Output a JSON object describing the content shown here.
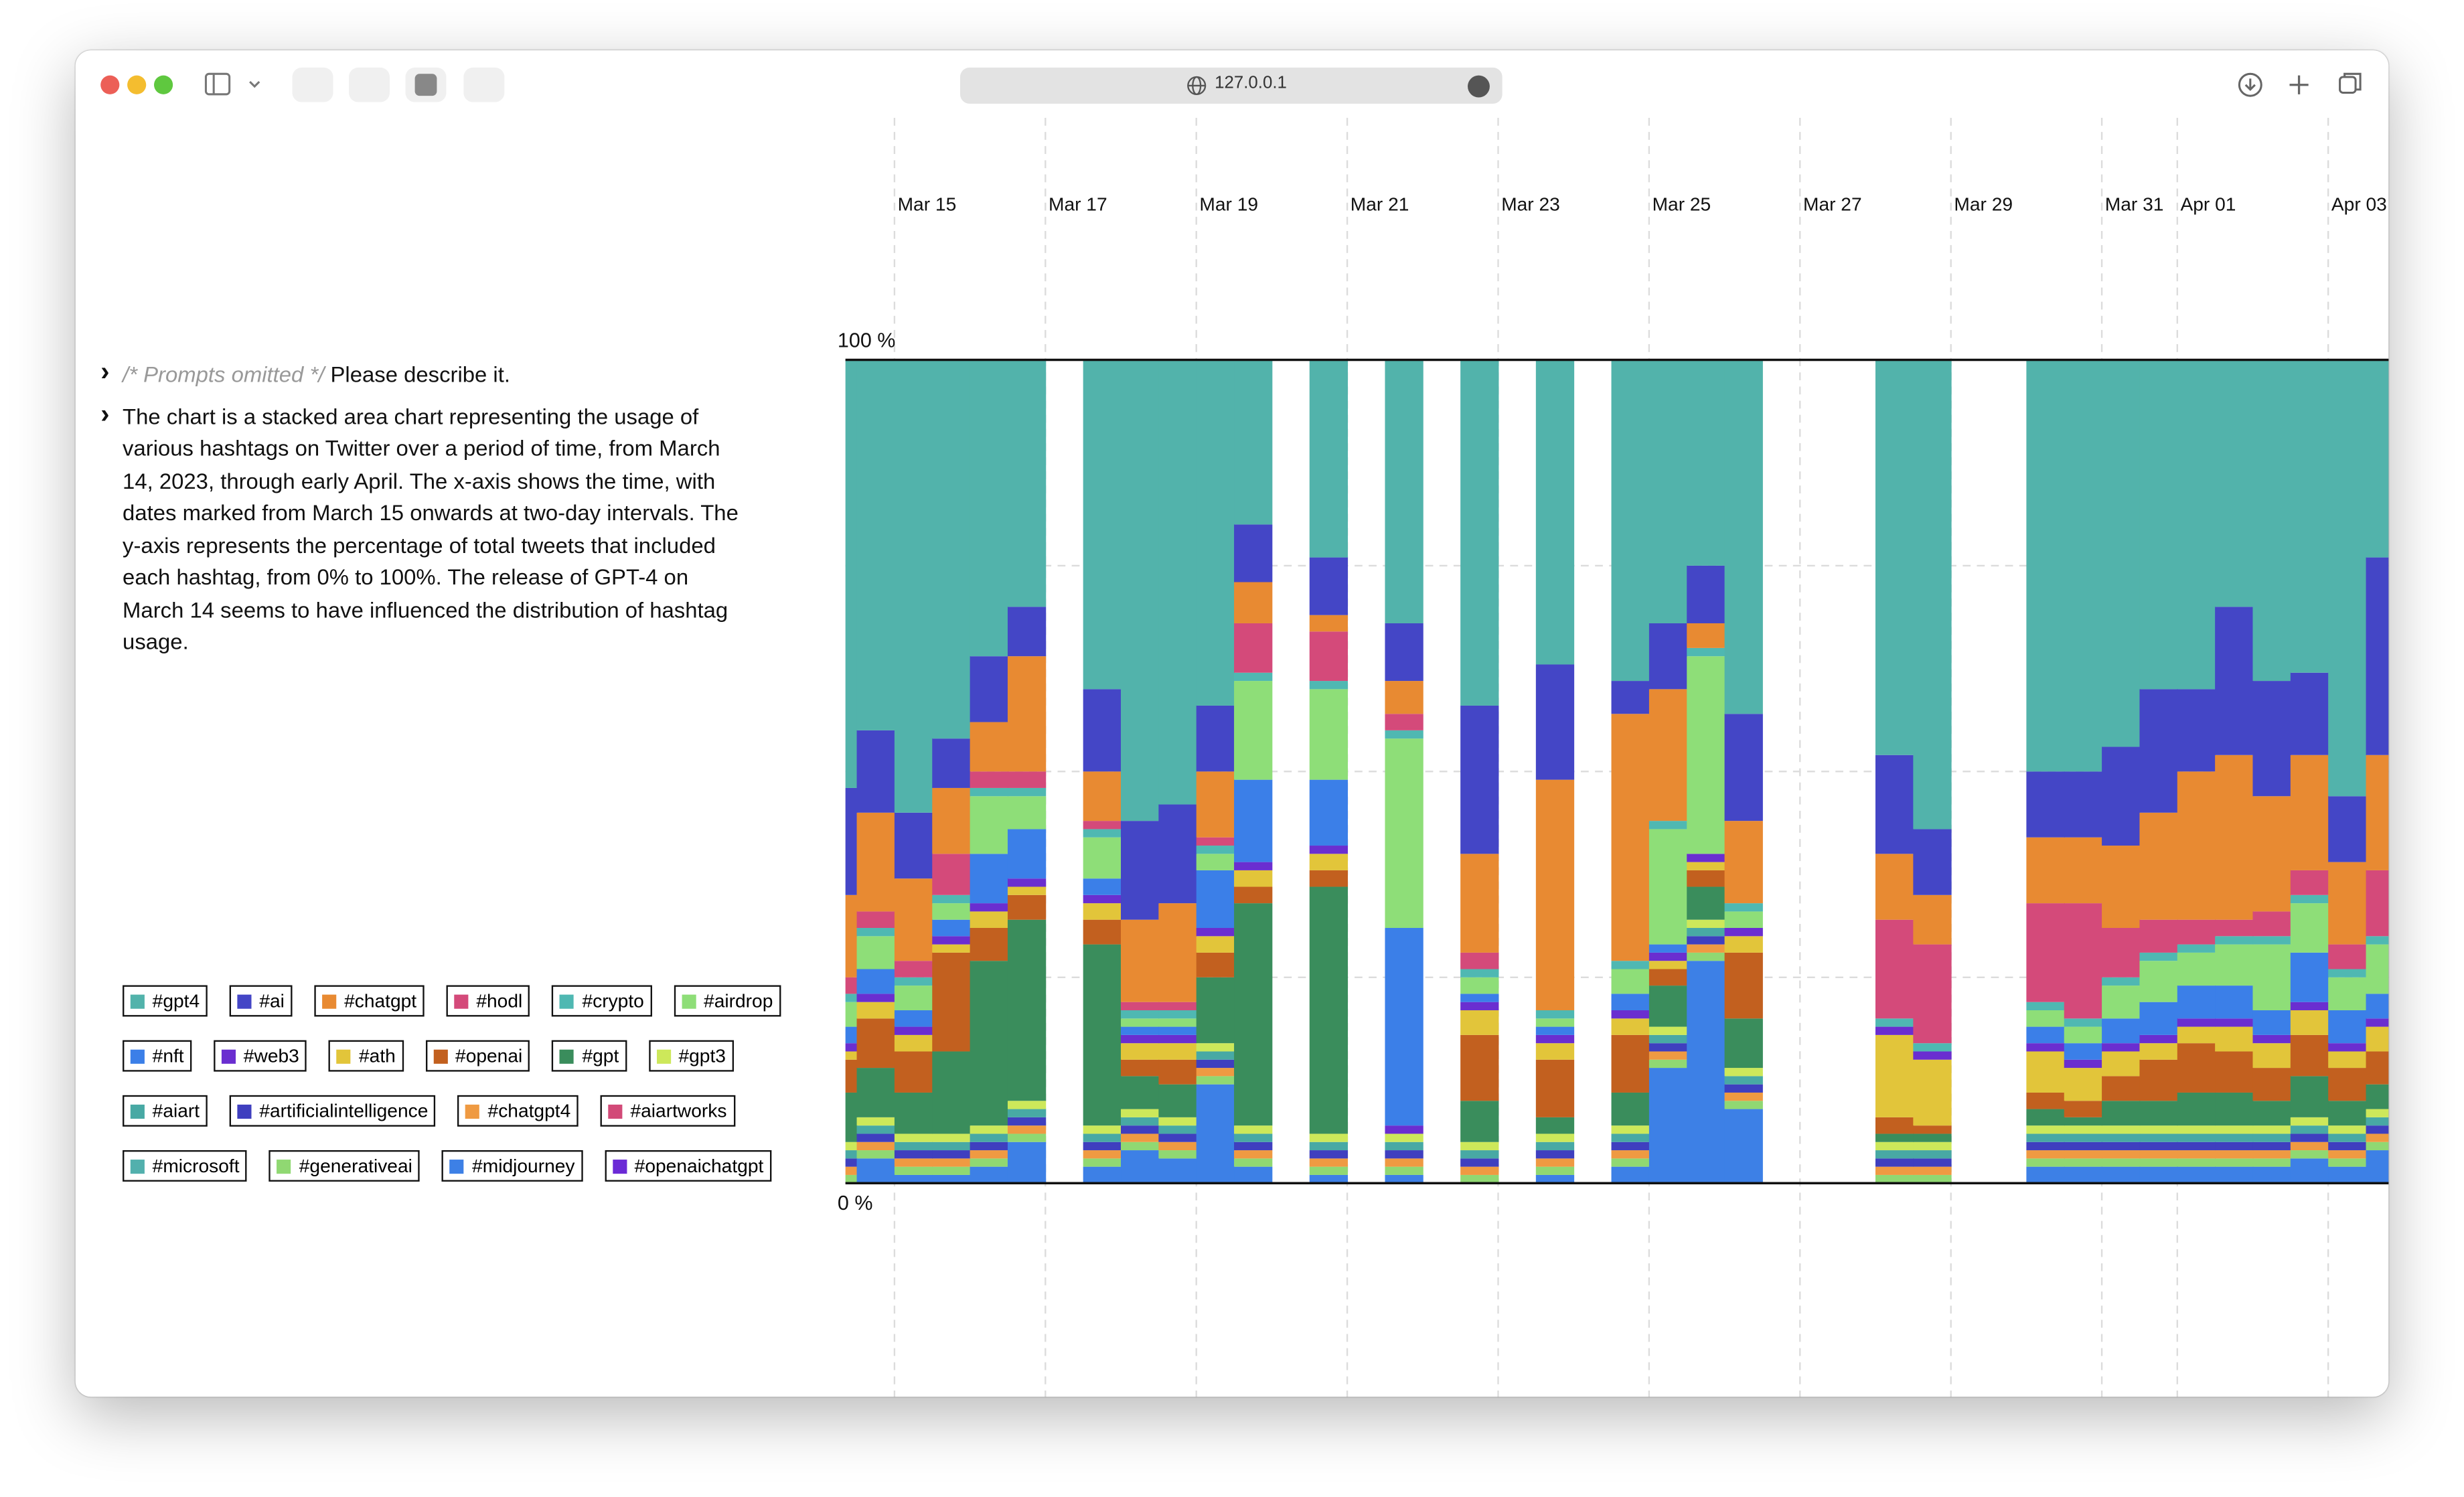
{
  "browser": {
    "url": "127.0.0.1"
  },
  "conversation": [
    {
      "note": "/* Prompts omitted */",
      "text": "Please describe it."
    },
    {
      "text": "The chart is a stacked area chart representing the usage of various hashtags on Twitter over a period of time, from March 14, 2023, through early April. The x-axis shows the time, with dates marked from March 15 onwards at two-day intervals. The y-axis represents the percentage of total tweets that included each hashtag, from 0% to 100%. The release of GPT-4 on March 14 seems to have influenced the distribution of hashtag usage."
    }
  ],
  "chart_data": {
    "type": "stacked-bar",
    "x": [
      14.25,
      14.75,
      15.25,
      15.75,
      16.25,
      16.75,
      17.25,
      17.75,
      18.25,
      18.75,
      19.25,
      19.75,
      20.25,
      20.75,
      21.25,
      21.75,
      22.25,
      22.75,
      23.25,
      23.75,
      24.25,
      24.75,
      25.25,
      25.75,
      26.25,
      26.75,
      27.25,
      27.75,
      28.25,
      28.75,
      29.25,
      29.75,
      30.25,
      30.75,
      31.25,
      31.75,
      32.25,
      32.75,
      33.25,
      33.75,
      34.25,
      34.75
    ],
    "xlim": [
      14.35,
      34.8
    ],
    "xticks": [
      {
        "value": 15,
        "label": "Mar 15"
      },
      {
        "value": 17,
        "label": "Mar 17"
      },
      {
        "value": 19,
        "label": "Mar 19"
      },
      {
        "value": 21,
        "label": "Mar 21"
      },
      {
        "value": 23,
        "label": "Mar 23"
      },
      {
        "value": 25,
        "label": "Mar 25"
      },
      {
        "value": 27,
        "label": "Mar 27"
      },
      {
        "value": 29,
        "label": "Mar 29"
      },
      {
        "value": 31,
        "label": "Mar 31"
      },
      {
        "value": 32,
        "label": "Apr 01"
      },
      {
        "value": 34,
        "label": "Apr 03"
      }
    ],
    "ylim": [
      0,
      100
    ],
    "yticks": [
      {
        "value": 0,
        "label": "0 %"
      },
      {
        "value": 25,
        "label": null
      },
      {
        "value": 50,
        "label": null
      },
      {
        "value": 75,
        "label": null
      },
      {
        "value": 100,
        "label": "100 %"
      }
    ],
    "grid": true,
    "series": [
      {
        "name": "#gpt4",
        "color": "#52b3ab",
        "values": [
          52,
          45,
          55,
          46,
          36,
          30,
          null,
          40,
          56,
          54,
          42,
          20,
          null,
          24,
          null,
          32,
          null,
          42,
          null,
          37,
          null,
          39,
          32,
          25,
          43,
          null,
          null,
          null,
          48,
          57,
          null,
          null,
          50,
          50,
          47,
          40,
          40,
          30,
          39,
          38,
          53,
          24
        ]
      },
      {
        "name": "#ai",
        "color": "#4446c6",
        "values": [
          13,
          10,
          8,
          6,
          8,
          6,
          null,
          10,
          12,
          12,
          8,
          7,
          null,
          7,
          null,
          7,
          null,
          18,
          null,
          14,
          null,
          4,
          8,
          7,
          13,
          null,
          null,
          null,
          12,
          8,
          null,
          null,
          8,
          8,
          12,
          15,
          10,
          18,
          14,
          10,
          8,
          24
        ]
      },
      {
        "name": "#chatgpt",
        "color": "#e88a32",
        "values": [
          10,
          12,
          10,
          8,
          6,
          14,
          null,
          6,
          10,
          12,
          8,
          5,
          null,
          2,
          null,
          4,
          null,
          12,
          null,
          28,
          null,
          30,
          16,
          3,
          10,
          null,
          null,
          null,
          8,
          6,
          null,
          null,
          8,
          8,
          10,
          13,
          18,
          20,
          14,
          14,
          10,
          14
        ]
      },
      {
        "name": "#hodl",
        "color": "#d44a7a",
        "values": [
          2,
          2,
          2,
          5,
          2,
          2,
          null,
          1,
          1,
          1,
          1,
          6,
          null,
          6,
          null,
          2,
          null,
          2,
          null,
          0,
          null,
          0,
          0,
          0,
          0,
          null,
          null,
          null,
          12,
          12,
          null,
          null,
          12,
          14,
          6,
          4,
          3,
          2,
          3,
          3,
          3,
          8
        ]
      },
      {
        "name": "#crypto",
        "color": "#4fb8b2",
        "values": [
          1,
          1,
          1,
          1,
          1,
          1,
          null,
          1,
          1,
          1,
          1,
          1,
          null,
          1,
          null,
          1,
          null,
          1,
          null,
          1,
          null,
          1,
          1,
          1,
          1,
          null,
          null,
          null,
          1,
          1,
          null,
          null,
          1,
          1,
          1,
          1,
          1,
          1,
          1,
          1,
          1,
          1
        ]
      },
      {
        "name": "#airdrop",
        "color": "#8ede78",
        "values": [
          3,
          4,
          3,
          2,
          7,
          4,
          null,
          5,
          1,
          1,
          2,
          12,
          null,
          11,
          null,
          23,
          null,
          2,
          null,
          1,
          null,
          3,
          14,
          24,
          2,
          null,
          null,
          null,
          0,
          0,
          null,
          null,
          2,
          2,
          4,
          5,
          4,
          5,
          8,
          6,
          4,
          6
        ]
      },
      {
        "name": "#nft",
        "color": "#3b7fe8",
        "values": [
          2,
          3,
          2,
          2,
          6,
          6,
          null,
          2,
          1,
          1,
          7,
          10,
          null,
          8,
          null,
          24,
          null,
          1,
          null,
          1,
          null,
          2,
          1,
          0,
          0,
          null,
          null,
          null,
          0,
          0,
          null,
          null,
          2,
          2,
          3,
          4,
          4,
          4,
          3,
          6,
          4,
          3
        ]
      },
      {
        "name": "#web3",
        "color": "#6a2ed0",
        "values": [
          1,
          1,
          1,
          1,
          1,
          1,
          null,
          1,
          1,
          1,
          1,
          1,
          null,
          1,
          null,
          1,
          null,
          1,
          null,
          1,
          null,
          1,
          1,
          1,
          1,
          null,
          null,
          null,
          1,
          1,
          null,
          null,
          1,
          1,
          1,
          1,
          1,
          1,
          1,
          1,
          1,
          1
        ]
      },
      {
        "name": "#ath",
        "color": "#e2c53a",
        "values": [
          1,
          2,
          2,
          1,
          2,
          1,
          null,
          2,
          2,
          2,
          2,
          2,
          null,
          2,
          null,
          0,
          null,
          3,
          null,
          2,
          null,
          2,
          1,
          1,
          2,
          null,
          null,
          null,
          10,
          8,
          null,
          null,
          5,
          4,
          3,
          2,
          2,
          3,
          3,
          3,
          2,
          3
        ]
      },
      {
        "name": "#openai",
        "color": "#c2601f",
        "values": [
          4,
          6,
          5,
          12,
          4,
          3,
          null,
          3,
          2,
          3,
          3,
          2,
          null,
          2,
          null,
          0,
          null,
          8,
          null,
          7,
          null,
          7,
          2,
          2,
          8,
          null,
          null,
          null,
          2,
          1,
          null,
          null,
          2,
          2,
          3,
          5,
          6,
          5,
          4,
          5,
          4,
          4
        ]
      },
      {
        "name": "#gpt",
        "color": "#3a8d5c",
        "values": [
          6,
          6,
          5,
          10,
          20,
          22,
          null,
          22,
          4,
          4,
          8,
          27,
          null,
          30,
          null,
          0,
          null,
          5,
          null,
          2,
          null,
          4,
          5,
          4,
          6,
          null,
          null,
          null,
          1,
          1,
          null,
          null,
          2,
          1,
          3,
          3,
          4,
          4,
          3,
          5,
          3,
          3
        ]
      },
      {
        "name": "#gpt3",
        "color": "#cde85a",
        "values": [
          1,
          1,
          1,
          1,
          1,
          1,
          null,
          1,
          1,
          1,
          1,
          1,
          null,
          1,
          null,
          1,
          null,
          1,
          null,
          1,
          null,
          1,
          1,
          1,
          1,
          null,
          null,
          null,
          1,
          1,
          null,
          null,
          1,
          1,
          1,
          1,
          1,
          1,
          1,
          1,
          1,
          1
        ]
      },
      {
        "name": "#aiart",
        "color": "#48a9a4",
        "values": [
          1,
          1,
          1,
          1,
          1,
          1,
          null,
          1,
          1,
          1,
          1,
          1,
          null,
          1,
          null,
          1,
          null,
          1,
          null,
          1,
          null,
          1,
          1,
          1,
          1,
          null,
          null,
          null,
          1,
          1,
          null,
          null,
          1,
          1,
          1,
          1,
          1,
          1,
          1,
          1,
          1,
          1
        ]
      },
      {
        "name": "#artificialintelligence",
        "color": "#3f3fbf",
        "values": [
          1,
          1,
          1,
          1,
          1,
          1,
          null,
          1,
          1,
          1,
          1,
          1,
          null,
          1,
          null,
          1,
          null,
          1,
          null,
          1,
          null,
          1,
          1,
          1,
          1,
          null,
          null,
          null,
          1,
          1,
          null,
          null,
          1,
          1,
          1,
          1,
          1,
          1,
          1,
          1,
          1,
          1
        ]
      },
      {
        "name": "#chatgpt4",
        "color": "#ef9a42",
        "values": [
          1,
          1,
          1,
          1,
          1,
          1,
          null,
          1,
          1,
          1,
          1,
          1,
          null,
          1,
          null,
          1,
          null,
          1,
          null,
          1,
          null,
          1,
          1,
          1,
          1,
          null,
          null,
          null,
          1,
          1,
          null,
          null,
          1,
          1,
          1,
          1,
          1,
          1,
          1,
          1,
          1,
          1
        ]
      },
      {
        "name": "#aiartworks",
        "color": "#d24a78",
        "values": [
          0,
          0,
          0,
          0,
          0,
          0,
          null,
          0,
          0,
          0,
          0,
          0,
          null,
          0,
          null,
          0,
          null,
          0,
          null,
          0,
          null,
          0,
          0,
          0,
          0,
          null,
          null,
          null,
          0,
          0,
          null,
          null,
          0,
          0,
          0,
          0,
          0,
          0,
          0,
          0,
          0,
          0
        ]
      },
      {
        "name": "#microsoft",
        "color": "#52b0ad",
        "values": [
          0,
          0,
          0,
          0,
          0,
          0,
          null,
          0,
          0,
          0,
          0,
          0,
          null,
          0,
          null,
          0,
          null,
          0,
          null,
          0,
          null,
          0,
          0,
          0,
          0,
          null,
          null,
          null,
          0,
          0,
          null,
          null,
          0,
          0,
          0,
          0,
          0,
          0,
          0,
          0,
          0,
          0
        ]
      },
      {
        "name": "#generativeai",
        "color": "#90d872",
        "values": [
          1,
          1,
          1,
          1,
          1,
          1,
          null,
          1,
          1,
          1,
          1,
          1,
          null,
          1,
          null,
          1,
          null,
          1,
          null,
          1,
          null,
          1,
          1,
          1,
          1,
          null,
          null,
          null,
          1,
          1,
          null,
          null,
          1,
          1,
          1,
          1,
          1,
          1,
          1,
          1,
          1,
          1
        ]
      },
      {
        "name": "#midjourney",
        "color": "#3d80e6",
        "values": [
          0,
          3,
          1,
          1,
          2,
          5,
          null,
          2,
          4,
          3,
          12,
          2,
          null,
          1,
          null,
          1,
          null,
          0,
          null,
          1,
          null,
          2,
          14,
          27,
          9,
          null,
          null,
          null,
          0,
          0,
          null,
          null,
          2,
          2,
          2,
          2,
          2,
          2,
          2,
          3,
          2,
          4
        ]
      },
      {
        "name": "#openaichatgpt",
        "color": "#6b2ad6",
        "values": [
          0,
          0,
          0,
          0,
          0,
          0,
          null,
          0,
          0,
          0,
          0,
          0,
          null,
          0,
          null,
          0,
          null,
          0,
          null,
          0,
          null,
          0,
          0,
          0,
          0,
          null,
          null,
          null,
          0,
          0,
          null,
          null,
          0,
          0,
          0,
          0,
          0,
          0,
          0,
          0,
          0,
          0
        ]
      }
    ]
  }
}
